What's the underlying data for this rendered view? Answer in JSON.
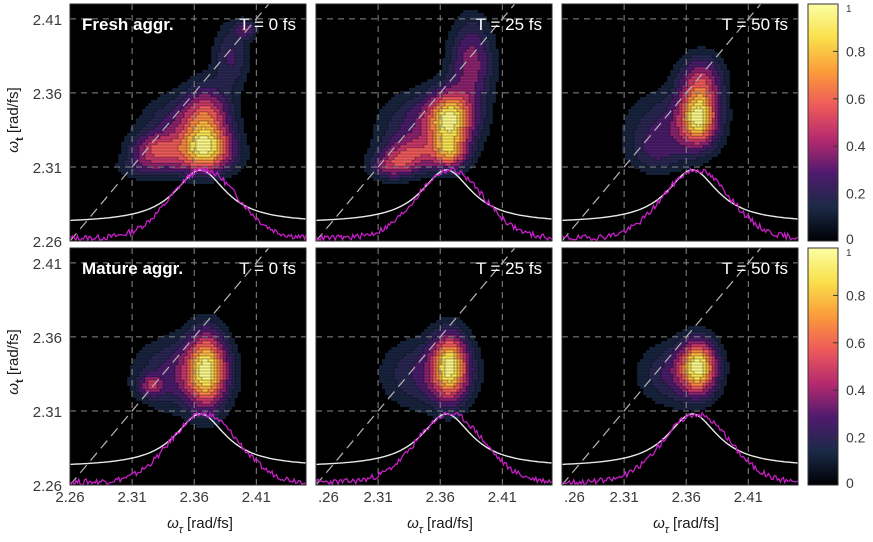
{
  "chart_data": {
    "type": "heatmap",
    "rows": [
      {
        "row_label": "Fresh aggr.",
        "panels": [
          {
            "time": "T = 0 fs",
            "peaks": [
              {
                "x": 2.37,
                "y": 2.34,
                "amp": 1.0,
                "sx": 0.013,
                "sy": 0.016
              },
              {
                "x": 2.37,
                "y": 2.323,
                "amp": 0.9,
                "sx": 0.015,
                "sy": 0.008
              },
              {
                "x": 2.328,
                "y": 2.322,
                "amp": 0.75,
                "sx": 0.013,
                "sy": 0.007
              },
              {
                "x": 2.35,
                "y": 2.335,
                "amp": 0.55,
                "sx": 0.022,
                "sy": 0.015
              },
              {
                "x": 2.39,
                "y": 2.385,
                "amp": 0.45,
                "sx": 0.01,
                "sy": 0.015
              },
              {
                "x": 2.402,
                "y": 2.403,
                "amp": 0.55,
                "sx": 0.006,
                "sy": 0.004
              },
              {
                "x": 2.365,
                "y": 2.313,
                "amp": 0.5,
                "sx": 0.02,
                "sy": 0.007
              },
              {
                "x": 2.32,
                "y": 2.31,
                "amp": 0.35,
                "sx": 0.015,
                "sy": 0.006
              }
            ]
          },
          {
            "time": "T = 25 fs",
            "peaks": [
              {
                "x": 2.368,
                "y": 2.343,
                "amp": 1.0,
                "sx": 0.012,
                "sy": 0.012
              },
              {
                "x": 2.368,
                "y": 2.32,
                "amp": 0.75,
                "sx": 0.01,
                "sy": 0.008
              },
              {
                "x": 2.335,
                "y": 2.318,
                "amp": 0.55,
                "sx": 0.015,
                "sy": 0.008
              },
              {
                "x": 2.385,
                "y": 2.38,
                "amp": 0.5,
                "sx": 0.012,
                "sy": 0.02
              },
              {
                "x": 2.35,
                "y": 2.338,
                "amp": 0.4,
                "sx": 0.025,
                "sy": 0.015
              },
              {
                "x": 2.32,
                "y": 2.31,
                "amp": 0.4,
                "sx": 0.012,
                "sy": 0.006
              }
            ]
          },
          {
            "time": "T = 50 fs",
            "peaks": [
              {
                "x": 2.37,
                "y": 2.343,
                "amp": 1.0,
                "sx": 0.01,
                "sy": 0.012
              },
              {
                "x": 2.372,
                "y": 2.368,
                "amp": 0.55,
                "sx": 0.012,
                "sy": 0.012
              },
              {
                "x": 2.35,
                "y": 2.338,
                "amp": 0.3,
                "sx": 0.025,
                "sy": 0.016
              },
              {
                "x": 2.335,
                "y": 2.32,
                "amp": 0.2,
                "sx": 0.015,
                "sy": 0.01
              }
            ]
          }
        ]
      },
      {
        "row_label": "Mature aggr.",
        "panels": [
          {
            "time": "T = 0 fs",
            "peaks": [
              {
                "x": 2.37,
                "y": 2.338,
                "amp": 1.0,
                "sx": 0.011,
                "sy": 0.017
              },
              {
                "x": 2.35,
                "y": 2.335,
                "amp": 0.35,
                "sx": 0.025,
                "sy": 0.016
              },
              {
                "x": 2.325,
                "y": 2.327,
                "amp": 0.4,
                "sx": 0.007,
                "sy": 0.005
              }
            ]
          },
          {
            "time": "T = 25 fs",
            "peaks": [
              {
                "x": 2.368,
                "y": 2.34,
                "amp": 1.0,
                "sx": 0.01,
                "sy": 0.015
              },
              {
                "x": 2.35,
                "y": 2.335,
                "amp": 0.3,
                "sx": 0.025,
                "sy": 0.016
              }
            ]
          },
          {
            "time": "T = 50 fs",
            "peaks": [
              {
                "x": 2.37,
                "y": 2.34,
                "amp": 1.0,
                "sx": 0.01,
                "sy": 0.012
              },
              {
                "x": 2.352,
                "y": 2.335,
                "amp": 0.3,
                "sx": 0.02,
                "sy": 0.014
              }
            ]
          }
        ]
      }
    ],
    "x_ticks": [
      "2.26",
      "2.31",
      "2.36",
      "2.41"
    ],
    "x_ticks_clipped": [
      ".26",
      "2.31",
      "2.36",
      "2.41"
    ],
    "y_ticks": [
      "2.41",
      "2.36",
      "2.31",
      "2.26"
    ],
    "xlim": [
      2.26,
      2.45
    ],
    "ylim": [
      2.26,
      2.42
    ],
    "xlabel_symbol": "ω",
    "xlabel_sub": "τ",
    "xlabel_units": " [rad/fs]",
    "ylabel_symbol": "ω",
    "ylabel_sub": "t",
    "ylabel_units": " [rad/fs]",
    "colorbar": {
      "ticks": [
        "0",
        "0.2",
        "0.4",
        "0.6",
        "0.8"
      ],
      "top_tick": "1",
      "range": [
        0,
        1
      ],
      "colormap": [
        "#000004",
        "#1b2a47",
        "#4f1a6e",
        "#b52a6e",
        "#ee5a5a",
        "#fb9b3a",
        "#f9e04b",
        "#fcffa4"
      ]
    },
    "grid": true,
    "diagonal": "dashed line y = x",
    "colors": {
      "background": "#000000",
      "contour_line": "#000000",
      "grid": "#8a8a8a",
      "white_curve": "#e8e8e8",
      "magenta_curve": "#c61fc6",
      "label_text": "#ffffff"
    }
  }
}
